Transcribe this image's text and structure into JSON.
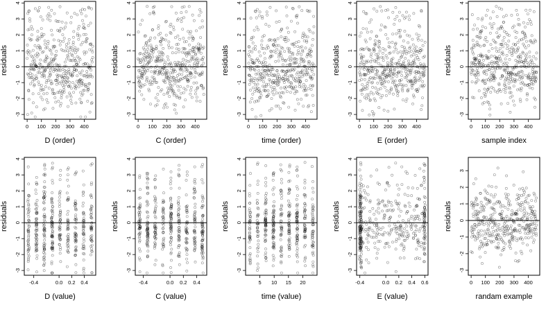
{
  "chart_data": [
    {
      "type": "scatter",
      "xlabel": "D (order)",
      "ylabel": "residuals",
      "xlim": [
        -20,
        480
      ],
      "ylim": [
        -3.3,
        4.1
      ],
      "xticks": [
        0,
        100,
        200,
        300,
        400
      ],
      "yticks": [
        -3,
        -2,
        -1,
        0,
        1,
        2,
        3,
        4
      ],
      "reference_line_y": 0,
      "points": "auto",
      "n": 460,
      "pattern": "u-shape"
    },
    {
      "type": "scatter",
      "xlabel": "C (order)",
      "ylabel": "residuals",
      "xlim": [
        -20,
        480
      ],
      "ylim": [
        -3.3,
        4.1
      ],
      "xticks": [
        0,
        100,
        200,
        300,
        400
      ],
      "yticks": [
        -3,
        -2,
        -1,
        0,
        1,
        2,
        3,
        4
      ],
      "reference_line_y": 0,
      "points": "auto",
      "n": 460,
      "pattern": "wave"
    },
    {
      "type": "scatter",
      "xlabel": "time (order)",
      "ylabel": "residuals",
      "xlim": [
        -20,
        480
      ],
      "ylim": [
        -3.3,
        4.1
      ],
      "xticks": [
        0,
        100,
        200,
        300,
        400
      ],
      "yticks": [
        -3,
        -2,
        -1,
        0,
        1,
        2,
        3,
        4
      ],
      "reference_line_y": 0,
      "points": "auto",
      "n": 460,
      "pattern": "flat"
    },
    {
      "type": "scatter",
      "xlabel": "E (order)",
      "ylabel": "residuals",
      "xlim": [
        -20,
        480
      ],
      "ylim": [
        -3.3,
        4.1
      ],
      "xticks": [
        0,
        100,
        200,
        300,
        400
      ],
      "yticks": [
        -3,
        -2,
        -1,
        0,
        1,
        2,
        3,
        4
      ],
      "reference_line_y": 0,
      "points": "auto",
      "n": 460,
      "pattern": "flat"
    },
    {
      "type": "scatter",
      "xlabel": "sample index",
      "ylabel": "residuals",
      "xlim": [
        -20,
        480
      ],
      "ylim": [
        -3.3,
        4.1
      ],
      "xticks": [
        0,
        100,
        200,
        300,
        400
      ],
      "yticks": [
        -3,
        -2,
        -1,
        0,
        1,
        2,
        3,
        4
      ],
      "reference_line_y": 0,
      "points": "auto",
      "n": 460,
      "pattern": "blocks"
    },
    {
      "type": "scatter",
      "xlabel": "D (value)",
      "ylabel": "residuals",
      "xlim": [
        -0.55,
        0.58
      ],
      "ylim": [
        -3.3,
        4.1
      ],
      "xticks": [
        -0.4,
        0.0,
        0.2,
        0.4
      ],
      "xtick_labels": [
        "-0.4",
        "0.0",
        "0.2",
        "0.4"
      ],
      "yticks": [
        -3,
        -2,
        -1,
        0,
        1,
        2,
        3,
        4
      ],
      "reference_line_y": 0,
      "points": "auto",
      "n": 460,
      "pattern": "columns"
    },
    {
      "type": "scatter",
      "xlabel": "C (value)",
      "ylabel": "residuals",
      "xlim": [
        -0.52,
        0.55
      ],
      "ylim": [
        -3.3,
        4.1
      ],
      "xticks": [
        -0.4,
        0.0,
        0.2,
        0.4
      ],
      "xtick_labels": [
        "-0.4",
        "0.0",
        "0.2",
        "0.4"
      ],
      "yticks": [
        -3,
        -2,
        -1,
        0,
        1,
        2,
        3,
        4
      ],
      "reference_line_y": 0,
      "points": "auto",
      "n": 460,
      "pattern": "columns"
    },
    {
      "type": "scatter",
      "xlabel": "time (value)",
      "ylabel": "residuals",
      "xlim": [
        0,
        25
      ],
      "ylim": [
        -3.3,
        4.1
      ],
      "xticks": [
        5,
        10,
        15,
        20
      ],
      "yticks": [
        -3,
        -2,
        -1,
        0,
        1,
        2,
        3,
        4
      ],
      "reference_line_y": 0,
      "points": "auto",
      "n": 460,
      "pattern": "columns"
    },
    {
      "type": "scatter",
      "xlabel": "E (value)",
      "ylabel": "residuals",
      "xlim": [
        -0.45,
        0.65
      ],
      "ylim": [
        -3.3,
        4.1
      ],
      "xticks": [
        -0.4,
        0.0,
        0.2,
        0.4,
        0.6
      ],
      "xtick_labels": [
        "-0.4",
        "0.0",
        "0.2",
        "0.4",
        "0.6"
      ],
      "yticks": [
        -3,
        -2,
        -1,
        0,
        1,
        2,
        3,
        4
      ],
      "reference_line_y": 0,
      "points": "auto",
      "n": 460,
      "pattern": "edges"
    },
    {
      "type": "scatter",
      "xlabel": "randam example",
      "ylabel": "residuals",
      "xlim": [
        -20,
        480
      ],
      "ylim": [
        -3.3,
        3.8
      ],
      "xticks": [
        0,
        100,
        200,
        300,
        400
      ],
      "yticks": [
        -3,
        -2,
        -1,
        0,
        1,
        2,
        3
      ],
      "reference_line_y": 0,
      "points": "auto",
      "n": 400,
      "pattern": "random"
    }
  ]
}
